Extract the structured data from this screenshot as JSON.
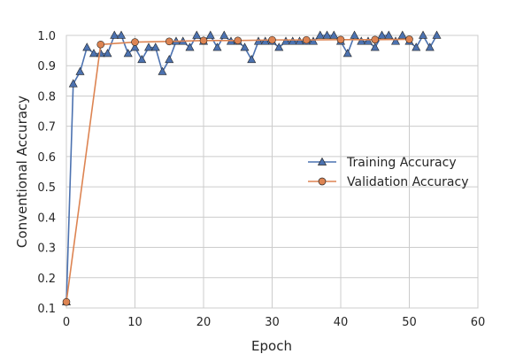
{
  "chart_data": {
    "type": "line",
    "title": "",
    "xlabel": "Epoch",
    "ylabel": "Conventional Accuracy",
    "xlim": [
      0,
      60
    ],
    "ylim": [
      0.1,
      1.0
    ],
    "grid": true,
    "legend_position": "center-right",
    "xticks": [
      0,
      10,
      20,
      30,
      40,
      50,
      60
    ],
    "yticks": [
      0.1,
      0.2,
      0.3,
      0.4,
      0.5,
      0.6,
      0.7,
      0.8,
      0.9,
      1.0
    ],
    "xtick_labels": [
      "0",
      "10",
      "20",
      "30",
      "40",
      "50",
      "60"
    ],
    "ytick_labels": [
      "0.1",
      "0.2",
      "0.3",
      "0.4",
      "0.5",
      "0.6",
      "0.7",
      "0.8",
      "0.9",
      "1.0"
    ],
    "series": [
      {
        "name": "Training Accuracy",
        "color": "#4c72b0",
        "marker": "triangle",
        "x": [
          0,
          1,
          2,
          3,
          4,
          5,
          6,
          7,
          8,
          9,
          10,
          11,
          12,
          13,
          14,
          15,
          16,
          17,
          18,
          19,
          20,
          21,
          22,
          23,
          24,
          25,
          26,
          27,
          28,
          29,
          30,
          31,
          32,
          33,
          34,
          35,
          36,
          37,
          38,
          39,
          40,
          41,
          42,
          43,
          44,
          45,
          46,
          47,
          48,
          49,
          50,
          51,
          52,
          53,
          54
        ],
        "y": [
          0.12,
          0.84,
          0.88,
          0.96,
          0.94,
          0.94,
          0.94,
          1.0,
          1.0,
          0.94,
          0.96,
          0.92,
          0.96,
          0.96,
          0.88,
          0.92,
          0.98,
          0.98,
          0.96,
          1.0,
          0.98,
          1.0,
          0.96,
          1.0,
          0.98,
          0.98,
          0.96,
          0.92,
          0.98,
          0.98,
          0.98,
          0.96,
          0.98,
          0.98,
          0.98,
          0.98,
          0.98,
          1.0,
          1.0,
          1.0,
          0.98,
          0.94,
          1.0,
          0.98,
          0.98,
          0.96,
          1.0,
          1.0,
          0.98,
          1.0,
          0.98,
          0.96,
          1.0,
          0.96,
          1.0
        ]
      },
      {
        "name": "Validation Accuracy",
        "color": "#dd8452",
        "marker": "circle",
        "x": [
          0,
          5,
          10,
          15,
          20,
          25,
          30,
          35,
          40,
          45,
          50
        ],
        "y": [
          0.12,
          0.97,
          0.978,
          0.98,
          0.983,
          0.983,
          0.985,
          0.985,
          0.986,
          0.986,
          0.987
        ]
      }
    ]
  }
}
